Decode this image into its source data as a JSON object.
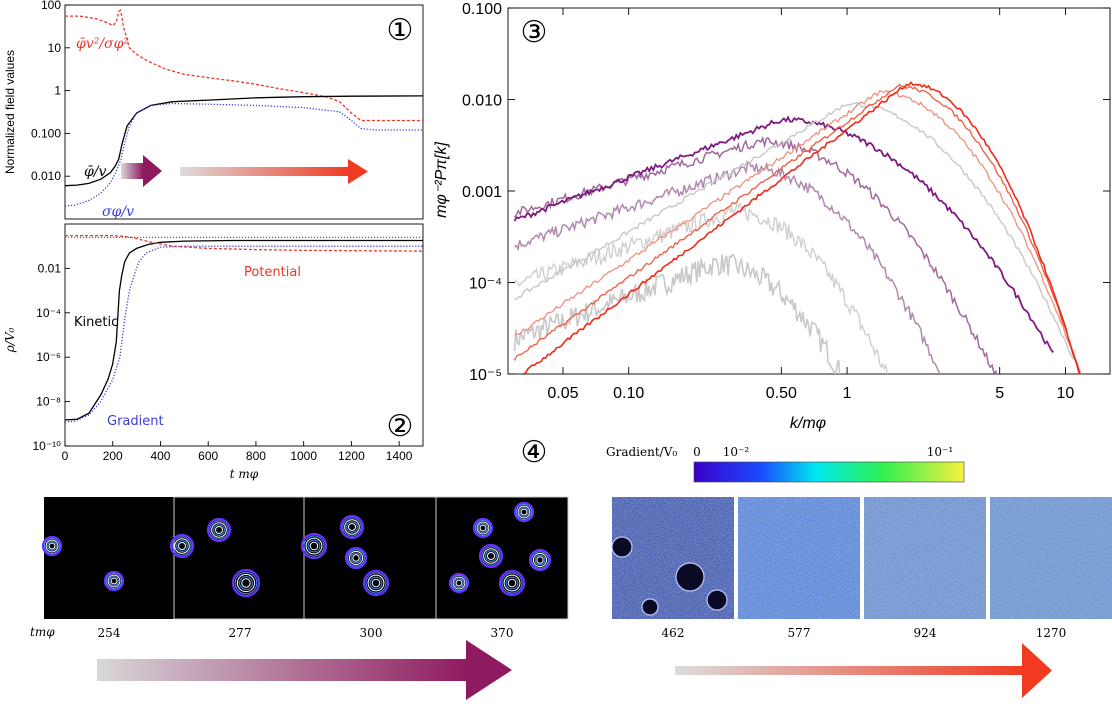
{
  "chart_data": [
    {
      "panel": "①",
      "type": "line",
      "ylabel": "Normalized field values",
      "yscale": "log",
      "ylim": [
        0.001,
        100
      ],
      "yticks": [
        "100",
        "10",
        "1",
        "0.100",
        "0.010"
      ],
      "xlim": [
        0,
        1500
      ],
      "series": [
        {
          "name": "φ̄v²/σφ²",
          "color": "#e8382a",
          "style": "dashed",
          "x": [
            0,
            60,
            130,
            180,
            200,
            215,
            225,
            232,
            238,
            245,
            255,
            270,
            300,
            350,
            420,
            500,
            600,
            700,
            800,
            900,
            1000,
            1100,
            1150,
            1200,
            1240,
            1300,
            1400,
            1500
          ],
          "y": [
            55,
            55,
            48,
            38,
            33,
            40,
            70,
            75,
            55,
            30,
            20,
            10,
            7,
            4.8,
            3.2,
            2.4,
            2.0,
            1.7,
            1.4,
            1.1,
            0.9,
            0.7,
            0.55,
            0.3,
            0.2,
            0.2,
            0.2,
            0.2
          ]
        },
        {
          "name": "φ̄/v",
          "color": "#000000",
          "style": "solid",
          "x": [
            0,
            50,
            100,
            150,
            190,
            210,
            225,
            240,
            260,
            300,
            360,
            450,
            600,
            800,
            1000,
            1200,
            1500
          ],
          "y": [
            0.006,
            0.0062,
            0.0068,
            0.0085,
            0.012,
            0.017,
            0.025,
            0.06,
            0.15,
            0.3,
            0.45,
            0.55,
            0.6,
            0.68,
            0.72,
            0.74,
            0.75
          ]
        },
        {
          "name": "σφ/v",
          "color": "#3b3bd6",
          "style": "dotted",
          "x": [
            0,
            40,
            100,
            150,
            190,
            215,
            235,
            250,
            270,
            300,
            360,
            450,
            600,
            800,
            1000,
            1150,
            1200,
            1240,
            1300,
            1500
          ],
          "y": [
            0.002,
            0.0021,
            0.0027,
            0.004,
            0.007,
            0.013,
            0.025,
            0.06,
            0.15,
            0.3,
            0.45,
            0.5,
            0.48,
            0.45,
            0.4,
            0.32,
            0.2,
            0.13,
            0.12,
            0.12
          ]
        }
      ]
    },
    {
      "panel": "②",
      "type": "line",
      "ylabel": "ρ/V₀",
      "yscale": "log",
      "ylim": [
        1e-10,
        1
      ],
      "yticks": [
        "0.01",
        "10⁻⁴",
        "10⁻⁶",
        "10⁻⁸",
        "10⁻¹⁰"
      ],
      "xlabel": "t mφ",
      "xticks": [
        "0",
        "200",
        "400",
        "600",
        "800",
        "1000",
        "1200",
        "1400"
      ],
      "xlim": [
        0,
        1500
      ],
      "series": [
        {
          "name": "Kinetic",
          "color": "#000000",
          "style": "solid",
          "x": [
            0,
            50,
            100,
            150,
            180,
            200,
            215,
            228,
            238,
            250,
            270,
            300,
            350,
            400,
            500,
            700,
            1000,
            1500
          ],
          "y": [
            1.5e-09,
            1.6e-09,
            3e-09,
            2e-08,
            1e-07,
            5e-07,
            5e-06,
            0.001,
            0.005,
            0.02,
            0.05,
            0.08,
            0.12,
            0.15,
            0.17,
            0.18,
            0.18,
            0.18
          ]
        },
        {
          "name": "Gradient",
          "color": "#3b3bd6",
          "style": "dotted",
          "x": [
            0,
            40,
            100,
            150,
            200,
            230,
            250,
            270,
            290,
            310,
            340,
            400,
            500,
            700,
            1000,
            1500
          ],
          "y": [
            1.2e-09,
            1.3e-09,
            2.5e-09,
            1e-08,
            1e-07,
            1e-06,
            5e-05,
            0.001,
            0.005,
            0.02,
            0.05,
            0.09,
            0.1,
            0.1,
            0.1,
            0.1
          ]
        },
        {
          "name": "Potential",
          "color": "#e8382a",
          "style": "dashed",
          "x": [
            0,
            200,
            240,
            280,
            350,
            450,
            600,
            800,
            1000,
            1500
          ],
          "y": [
            0.3,
            0.3,
            0.28,
            0.25,
            0.16,
            0.1,
            0.08,
            0.07,
            0.065,
            0.06
          ]
        },
        {
          "name": "",
          "color": "#666666",
          "style": "dotted",
          "x": [
            0,
            1500
          ],
          "y": [
            0.25,
            0.25
          ]
        }
      ]
    },
    {
      "panel": "③",
      "type": "line",
      "xlabel": "k/mφ",
      "ylabel": "mφ⁻²Pπ[k]",
      "xscale": "log",
      "yscale": "log",
      "xlim": [
        0.028,
        16
      ],
      "ylim": [
        1e-05,
        0.1
      ],
      "xticks": [
        "0.05",
        "0.10",
        "0.50",
        "1",
        "5",
        "10"
      ],
      "yticks": [
        "0.100",
        "0.010",
        "0.001",
        "10⁻⁴",
        "10⁻⁵"
      ]
    },
    {
      "panel": "④",
      "type": "heatmap",
      "colorbar_label": "Gradient/V₀",
      "colorbar_ticks": [
        "0",
        "10⁻²",
        "10⁻¹"
      ],
      "time_label": "tmφ",
      "snapshots_left": [
        "254",
        "277",
        "300",
        "370"
      ],
      "snapshots_right": [
        "462",
        "577",
        "924",
        "1270"
      ]
    }
  ]
}
